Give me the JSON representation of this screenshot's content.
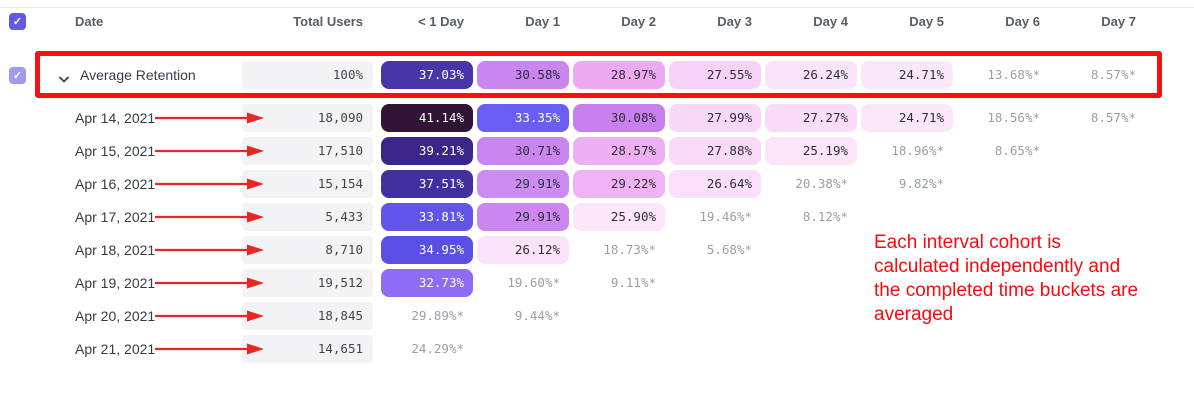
{
  "colors": {
    "box_red": "#f31111",
    "arrow_red": "#e92525",
    "text_red": "#fb0a0a",
    "checkbox_purple": "#5f5ce4",
    "checkbox_purple_light": "#a19bf0"
  },
  "icons": {
    "checkmark": "✓",
    "chevron_down": "chevron-down"
  },
  "table": {
    "columns": [
      "Date",
      "Total Users",
      "< 1 Day",
      "Day 1",
      "Day 2",
      "Day 3",
      "Day 4",
      "Day 5",
      "Day 6",
      "Day 7"
    ],
    "average_row": {
      "label": "Average Retention",
      "total": "100%",
      "cells": [
        {
          "text": "37.03%",
          "bg": "#4836a8",
          "fg": "#ffffff"
        },
        {
          "text": "30.58%",
          "bg": "#ca85ee",
          "fg": "#2e3038"
        },
        {
          "text": "28.97%",
          "bg": "#eeaaf1",
          "fg": "#2e3038"
        },
        {
          "text": "27.55%",
          "bg": "#f7d2f6",
          "fg": "#2e3038"
        },
        {
          "text": "26.24%",
          "bg": "#fbe4fa",
          "fg": "#2e3038"
        },
        {
          "text": "24.71%",
          "bg": "#fbe7fa",
          "fg": "#2e3038"
        },
        {
          "text": "13.68%*",
          "bg": "",
          "fg": "#9aa0a9"
        },
        {
          "text": "8.57%*",
          "bg": "",
          "fg": "#9aa0a9"
        }
      ]
    },
    "rows": [
      {
        "date": "Apr 14, 2021",
        "total": "18,090",
        "cells": [
          {
            "text": "41.14%",
            "bg": "#311535",
            "fg": "#ffffff"
          },
          {
            "text": "33.35%",
            "bg": "#6a5ef2",
            "fg": "#ffffff"
          },
          {
            "text": "30.08%",
            "bg": "#c980ef",
            "fg": "#2e3038"
          },
          {
            "text": "27.99%",
            "bg": "#f8d8f7",
            "fg": "#2e3038"
          },
          {
            "text": "27.27%",
            "bg": "#f9dcf8",
            "fg": "#2e3038"
          },
          {
            "text": "24.71%",
            "bg": "#fbe7fa",
            "fg": "#2e3038"
          },
          {
            "text": "18.56%*",
            "bg": "",
            "fg": "#9aa0a9"
          },
          {
            "text": "8.57%*",
            "bg": "",
            "fg": "#9aa0a9"
          }
        ]
      },
      {
        "date": "Apr 15, 2021",
        "total": "17,510",
        "cells": [
          {
            "text": "39.21%",
            "bg": "#3a2589",
            "fg": "#ffffff"
          },
          {
            "text": "30.71%",
            "bg": "#ca86ef",
            "fg": "#2e3038"
          },
          {
            "text": "28.57%",
            "bg": "#efb0f3",
            "fg": "#2e3038"
          },
          {
            "text": "27.88%",
            "bg": "#f8d9f7",
            "fg": "#2e3038"
          },
          {
            "text": "25.19%",
            "bg": "#fbe5f9",
            "fg": "#2e3038"
          },
          {
            "text": "18.96%*",
            "bg": "",
            "fg": "#9aa0a9"
          },
          {
            "text": "8.65%*",
            "bg": "",
            "fg": "#9aa0a9"
          }
        ]
      },
      {
        "date": "Apr 16, 2021",
        "total": "15,154",
        "cells": [
          {
            "text": "37.51%",
            "bg": "#43309f",
            "fg": "#ffffff"
          },
          {
            "text": "29.91%",
            "bg": "#cc8cf1",
            "fg": "#2e3038"
          },
          {
            "text": "29.22%",
            "bg": "#efb3f3",
            "fg": "#2e3038"
          },
          {
            "text": "26.64%",
            "bg": "#f9e0f8",
            "fg": "#2e3038"
          },
          {
            "text": "20.38%*",
            "bg": "",
            "fg": "#9aa0a9"
          },
          {
            "text": "9.82%*",
            "bg": "",
            "fg": "#9aa0a9"
          }
        ]
      },
      {
        "date": "Apr 17, 2021",
        "total": "5,433",
        "cells": [
          {
            "text": "33.81%",
            "bg": "#6155e9",
            "fg": "#ffffff"
          },
          {
            "text": "29.91%",
            "bg": "#cc86f0",
            "fg": "#2e3038"
          },
          {
            "text": "25.90%",
            "bg": "#fbe6fa",
            "fg": "#2e3038"
          },
          {
            "text": "19.46%*",
            "bg": "",
            "fg": "#9aa0a9"
          },
          {
            "text": "8.12%*",
            "bg": "",
            "fg": "#9aa0a9"
          }
        ]
      },
      {
        "date": "Apr 18, 2021",
        "total": "8,710",
        "cells": [
          {
            "text": "34.95%",
            "bg": "#5a4fe5",
            "fg": "#ffffff"
          },
          {
            "text": "26.12%",
            "bg": "#fbe4f9",
            "fg": "#2e3038"
          },
          {
            "text": "18.73%*",
            "bg": "",
            "fg": "#9aa0a9"
          },
          {
            "text": "5.68%*",
            "bg": "",
            "fg": "#9aa0a9"
          }
        ]
      },
      {
        "date": "Apr 19, 2021",
        "total": "19,512",
        "cells": [
          {
            "text": "32.73%",
            "bg": "#8e6cf3",
            "fg": "#ffffff"
          },
          {
            "text": "19.60%*",
            "bg": "",
            "fg": "#9aa0a9"
          },
          {
            "text": "9.11%*",
            "bg": "",
            "fg": "#9aa0a9"
          }
        ]
      },
      {
        "date": "Apr 20, 2021",
        "total": "18,845",
        "cells": [
          {
            "text": "29.89%*",
            "bg": "",
            "fg": "#9aa0a9"
          },
          {
            "text": "9.44%*",
            "bg": "",
            "fg": "#9aa0a9"
          }
        ]
      },
      {
        "date": "Apr 21, 2021",
        "total": "14,651",
        "cells": [
          {
            "text": "24.29%*",
            "bg": "",
            "fg": "#9aa0a9"
          }
        ]
      }
    ]
  },
  "annotation": {
    "lines": [
      "Each interval cohort is",
      "calculated independently and",
      "the completed time buckets are",
      "averaged"
    ]
  }
}
